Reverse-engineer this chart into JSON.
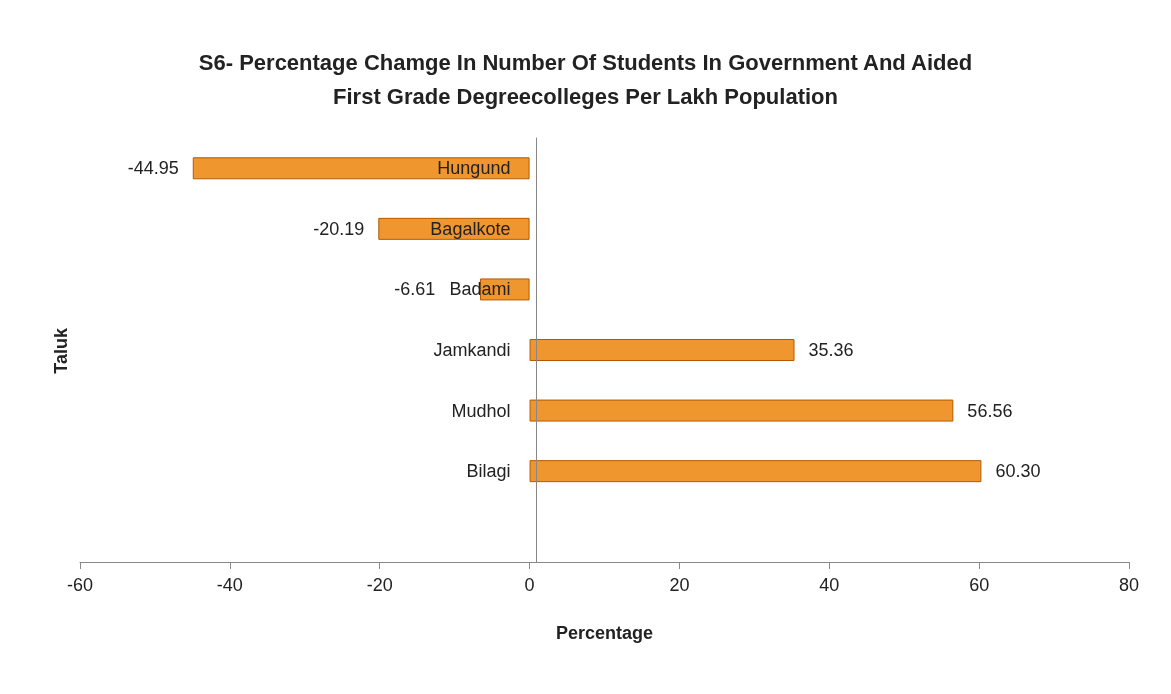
{
  "chart_data": {
    "type": "bar",
    "orientation": "horizontal",
    "title": "S6- Percentage Chamge In Number Of Students In Government And Aided\nFirst Grade Degreecolleges Per Lakh Population",
    "xlabel": "Percentage",
    "ylabel": "Taluk",
    "categories": [
      "Hungund",
      "Bagalkote",
      "Badami",
      "Jamkandi",
      "Mudhol",
      "Bilagi",
      null
    ],
    "values": [
      -44.95,
      -20.19,
      -6.61,
      35.36,
      56.56,
      60.3,
      null
    ],
    "value_labels": [
      "-44.95",
      "-20.19",
      "-6.61",
      "35.36",
      "56.56",
      "60.30",
      null
    ],
    "color": "#f0962e",
    "xlim": [
      -60,
      80
    ],
    "xticks": [
      -60,
      -40,
      -20,
      0,
      20,
      40,
      60,
      80
    ],
    "grid": false
  }
}
